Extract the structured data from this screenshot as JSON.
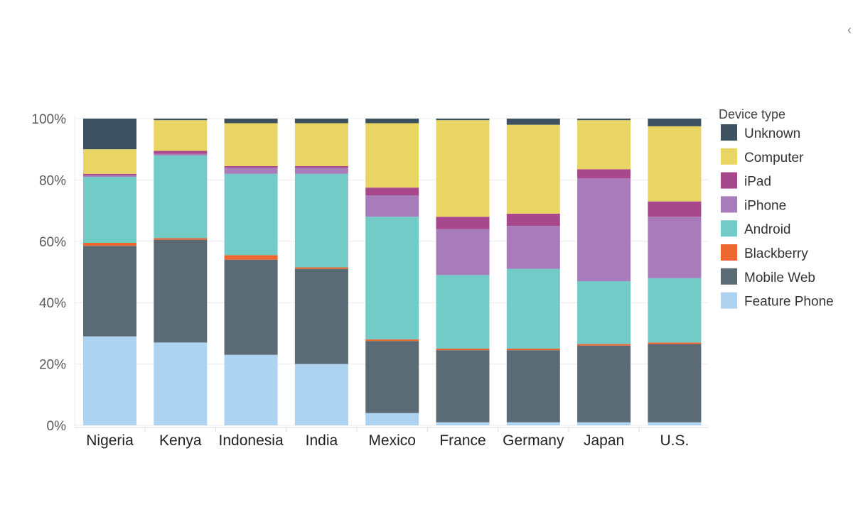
{
  "chart_data": {
    "type": "bar",
    "stacked": true,
    "title": "",
    "xlabel": "",
    "ylabel": "",
    "ylim": [
      0,
      100
    ],
    "yticks": [
      0,
      20,
      40,
      60,
      80,
      100
    ],
    "ytick_labels": [
      "0%",
      "20%",
      "40%",
      "60%",
      "80%",
      "100%"
    ],
    "grid": true,
    "legend_position": "right",
    "legend_title": "Device type",
    "categories": [
      "Nigeria",
      "Kenya",
      "Indonesia",
      "India",
      "Mexico",
      "France",
      "Germany",
      "Japan",
      "U.S."
    ],
    "series": [
      {
        "name": "Feature Phone",
        "color": "#aed3f0",
        "values": [
          29,
          27,
          23,
          20,
          4,
          1,
          1,
          1,
          1
        ]
      },
      {
        "name": "Mobile Web",
        "color": "#5b6b76",
        "values": [
          29.5,
          33.5,
          31,
          31,
          23.5,
          23.5,
          23.5,
          25,
          25.5
        ]
      },
      {
        "name": "Blackberry",
        "color": "#ee6630",
        "values": [
          1,
          0.5,
          1.5,
          0.5,
          0.5,
          0.5,
          0.5,
          0.5,
          0.5
        ]
      },
      {
        "name": "Android",
        "color": "#72cbc7",
        "values": [
          21.5,
          27,
          26.5,
          30.5,
          40,
          24,
          26,
          20.5,
          21
        ]
      },
      {
        "name": "iPhone",
        "color": "#a87bba",
        "values": [
          0.5,
          0.5,
          2,
          2,
          7,
          15,
          14,
          33.5,
          20
        ]
      },
      {
        "name": "iPad",
        "color": "#a8488c",
        "values": [
          0.5,
          1,
          0.5,
          0.5,
          2.5,
          4,
          4,
          3,
          5
        ]
      },
      {
        "name": "Computer",
        "color": "#e9d564",
        "values": [
          8,
          10,
          14,
          14,
          21,
          31.5,
          29,
          16,
          24.5
        ]
      },
      {
        "name": "Unknown",
        "color": "#3d5160",
        "values": [
          10,
          0.5,
          1.5,
          1.5,
          1.5,
          0.5,
          2,
          0.5,
          2.5
        ]
      }
    ]
  },
  "legend_order": [
    "Unknown",
    "Computer",
    "iPad",
    "iPhone",
    "Android",
    "Blackberry",
    "Mobile Web",
    "Feature Phone"
  ],
  "corner_icon": "chevron-left-icon"
}
